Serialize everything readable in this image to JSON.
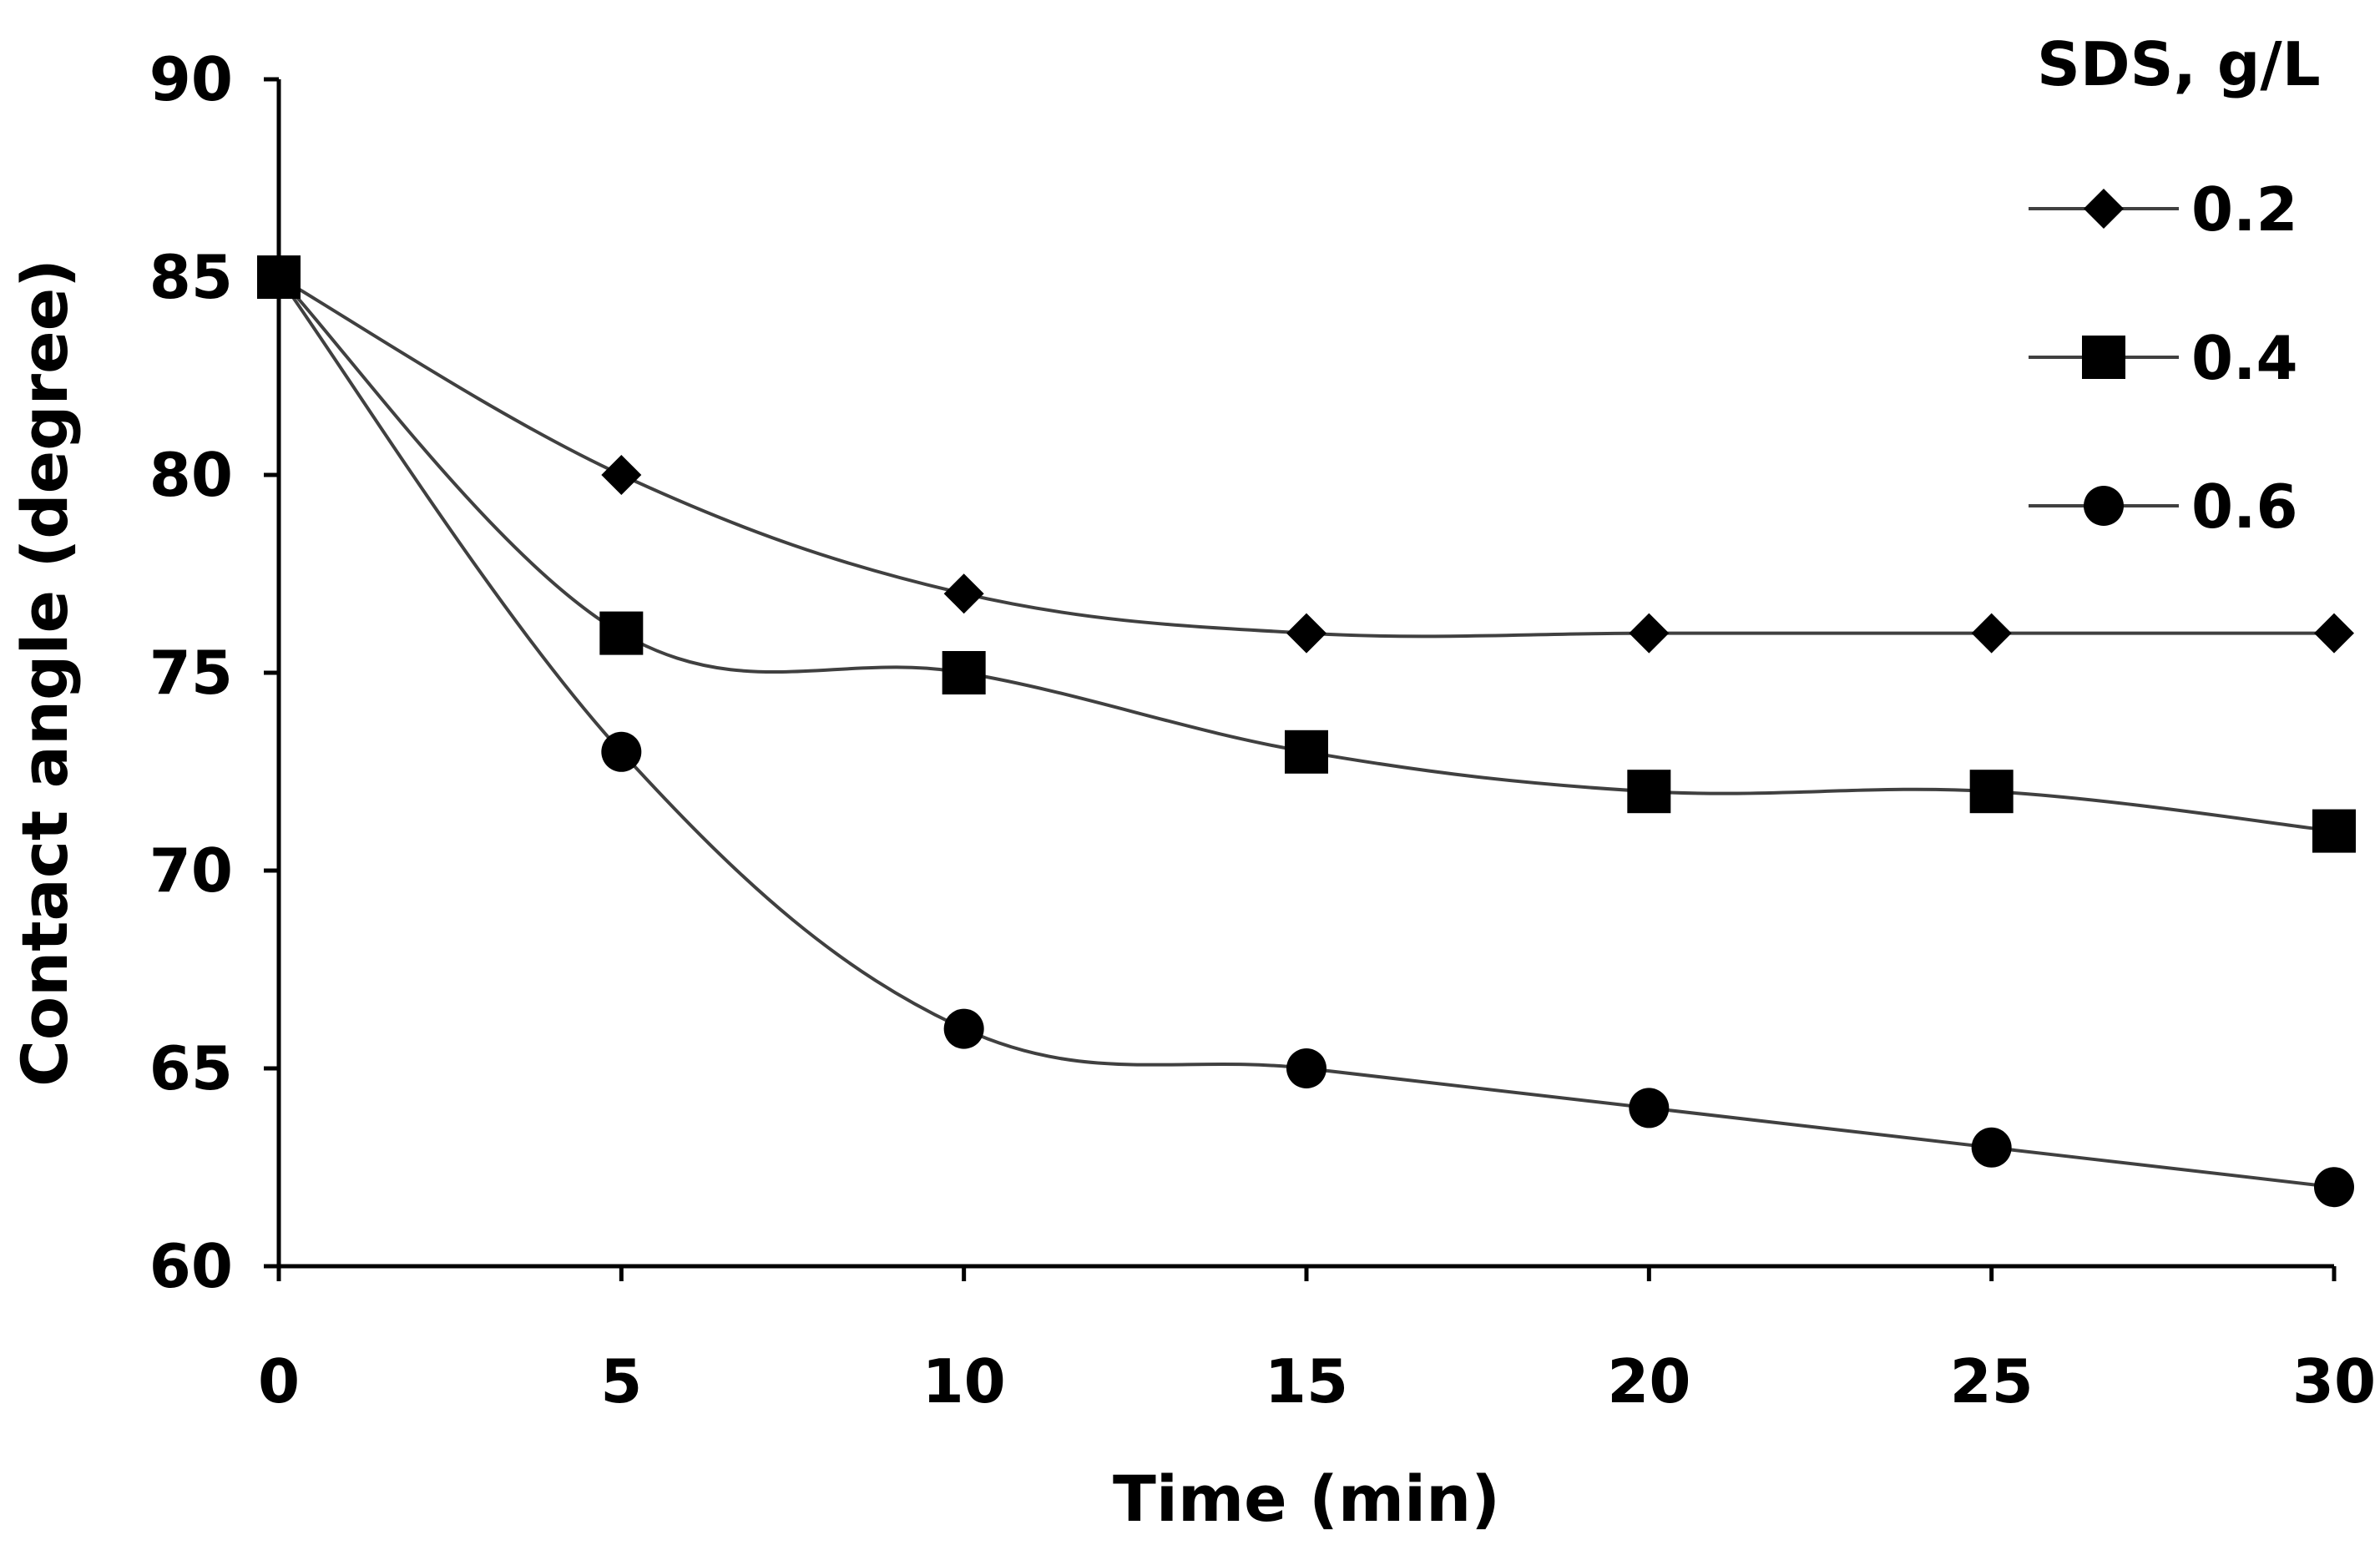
{
  "chart_data": {
    "type": "line",
    "title": "",
    "xlabel": "Time (min)",
    "ylabel": "Contact angle (degree)",
    "xlim": [
      0,
      30
    ],
    "ylim": [
      60,
      90
    ],
    "x_ticks": [
      0,
      5,
      10,
      15,
      20,
      25,
      30
    ],
    "y_ticks": [
      60,
      65,
      70,
      75,
      80,
      85,
      90
    ],
    "x_tick_labels": [
      "0",
      "5",
      "10",
      "15",
      "20",
      "25",
      "30"
    ],
    "y_tick_labels": [
      "60",
      "65",
      "70",
      "75",
      "80",
      "85",
      "90"
    ],
    "grid": false,
    "legend_title": "SDS, g/L",
    "legend_position": "top-right",
    "x": [
      0,
      5,
      10,
      15,
      20,
      25,
      30
    ],
    "series": [
      {
        "name": "0.2",
        "marker": "diamond",
        "values": [
          85,
          80,
          77,
          76,
          76,
          76,
          76
        ]
      },
      {
        "name": "0.4",
        "marker": "square",
        "values": [
          85,
          76,
          75,
          73,
          72,
          72,
          71
        ]
      },
      {
        "name": "0.6",
        "marker": "circle",
        "values": [
          85,
          73,
          66,
          65,
          64,
          63,
          62
        ]
      }
    ],
    "colors": {
      "line": "#404040",
      "marker": "#000000",
      "axis": "#000000"
    }
  }
}
